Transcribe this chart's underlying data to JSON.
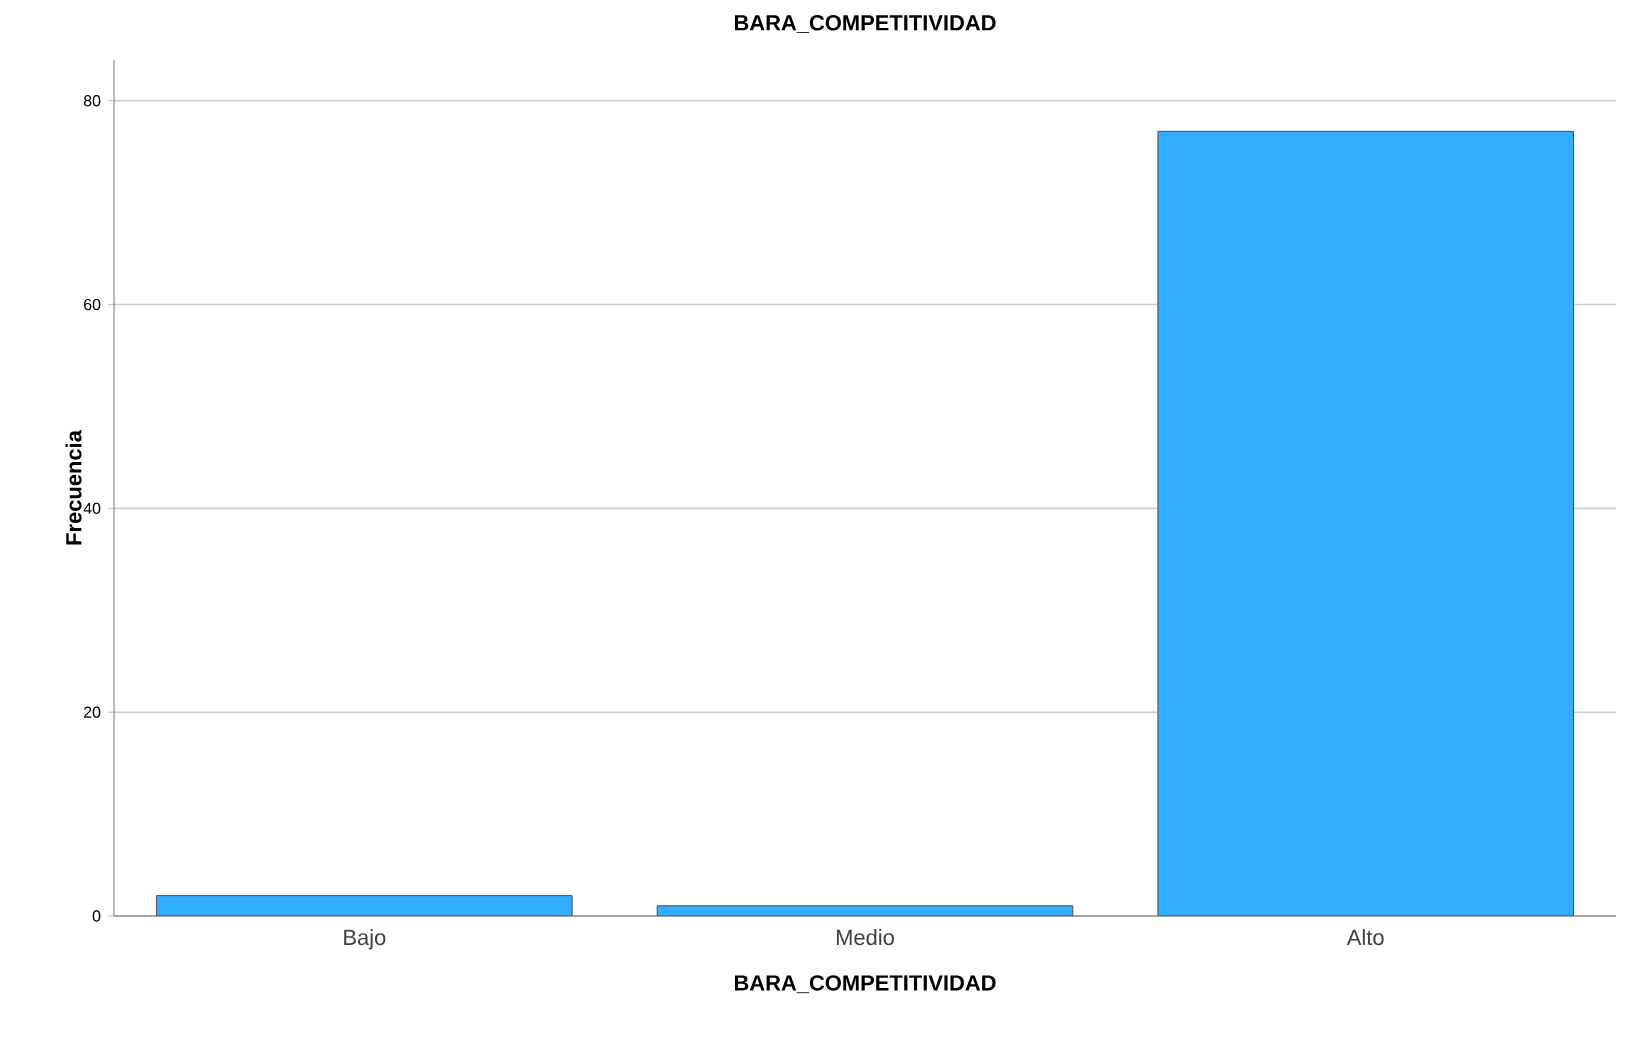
{
  "chart_data": {
    "type": "bar",
    "title": "BARA_COMPETITIVIDAD",
    "xlabel": "BARA_COMPETITIVIDAD",
    "ylabel": "Frecuencia",
    "categories": [
      "Bajo",
      "Medio",
      "Alto"
    ],
    "values": [
      2,
      1,
      77
    ],
    "color": "#33adff",
    "ylim": [
      0,
      84
    ],
    "yticks": [
      0,
      20,
      40,
      60,
      80
    ],
    "grid": "y"
  }
}
